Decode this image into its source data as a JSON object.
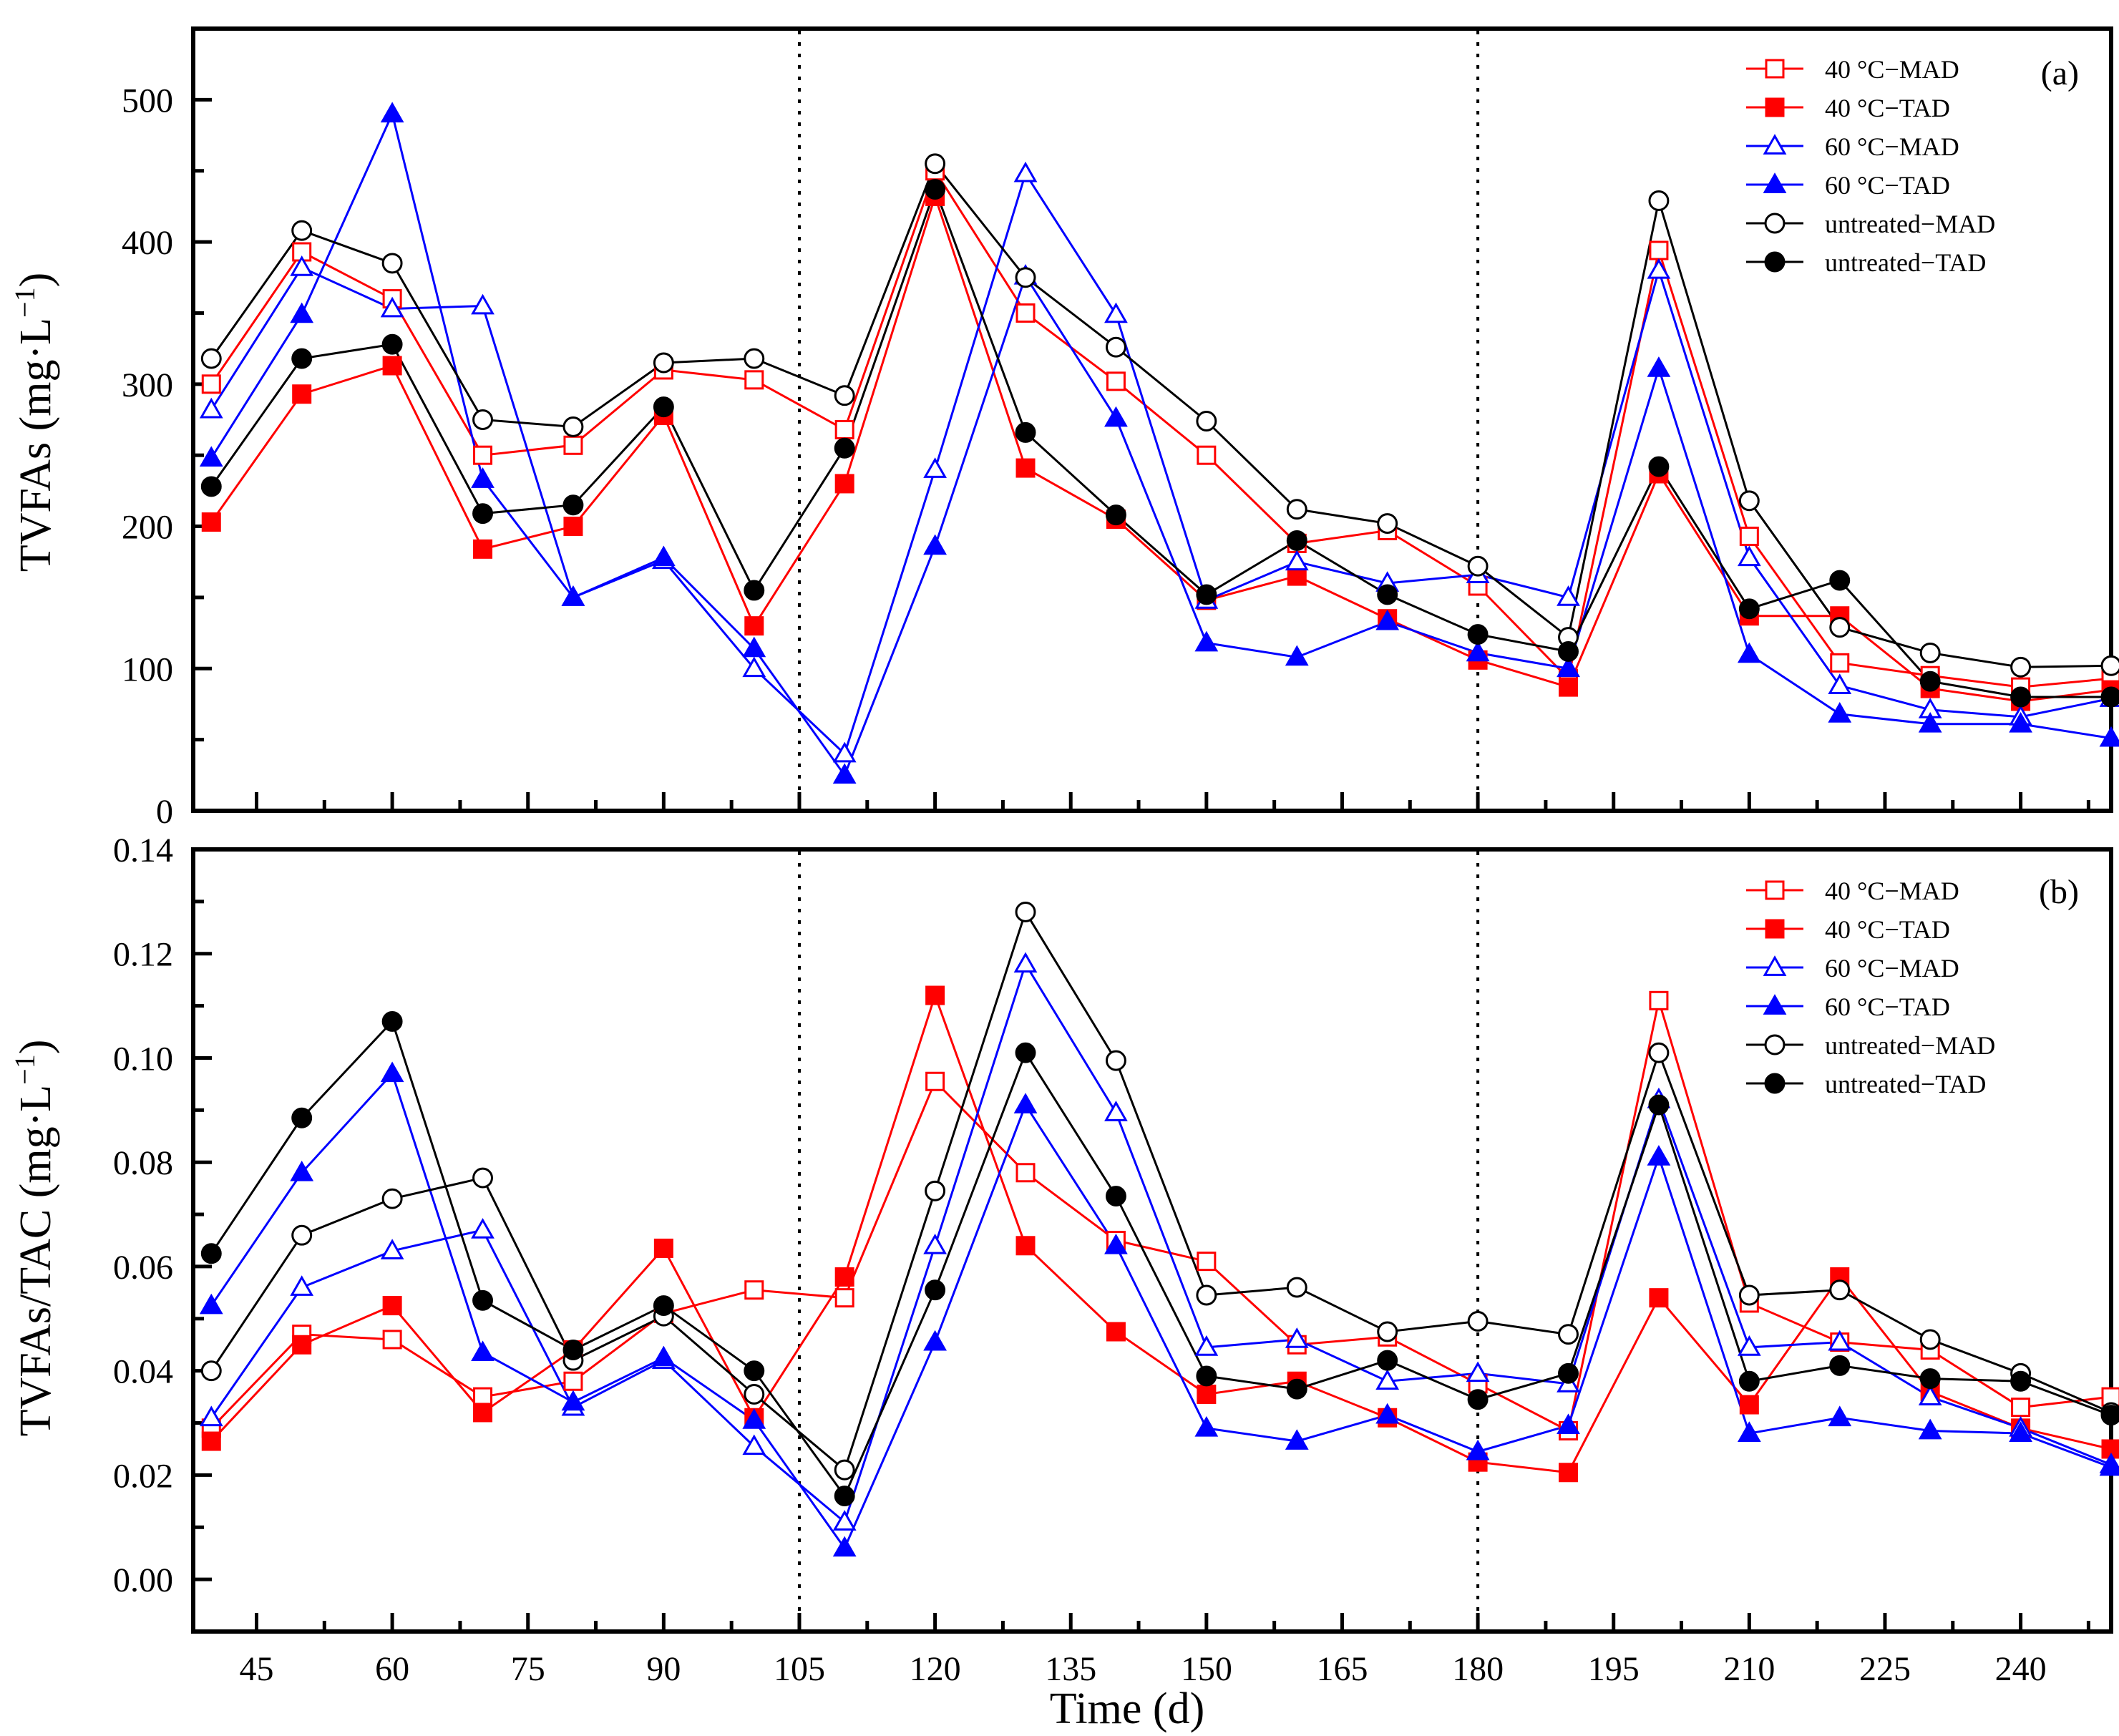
{
  "chart_data": [
    {
      "type": "line",
      "panel_label": "(a)",
      "ylabel": "TVFAs (mg·L",
      "ylabel_sup": "−1",
      "ylabel_close": ")",
      "xlim": [
        38,
        250
      ],
      "ylim": [
        0,
        550
      ],
      "xticks": [
        45,
        60,
        75,
        90,
        105,
        120,
        135,
        150,
        165,
        180,
        195,
        210,
        225,
        240
      ],
      "yticks": [
        0,
        100,
        200,
        300,
        400,
        500
      ],
      "vlines": [
        105,
        180
      ],
      "grid": false,
      "legend_position": "top-right",
      "x": [
        40,
        50,
        60,
        70,
        80,
        90,
        100,
        110,
        120,
        130,
        140,
        150,
        160,
        170,
        180,
        190,
        200,
        210,
        220,
        230,
        240,
        250
      ],
      "series": [
        {
          "name": "40 °C−MAD",
          "color": "#ff0000",
          "marker": "square",
          "filled": false,
          "values": [
            300,
            393,
            360,
            250,
            257,
            310,
            303,
            268,
            450,
            350,
            302,
            250,
            188,
            197,
            158,
            93,
            394,
            193,
            104,
            95,
            87,
            93
          ]
        },
        {
          "name": "40 °C−TAD",
          "color": "#ff0000",
          "marker": "square",
          "filled": true,
          "values": [
            203,
            293,
            313,
            184,
            200,
            278,
            130,
            230,
            432,
            241,
            205,
            148,
            165,
            135,
            106,
            87,
            237,
            137,
            137,
            86,
            77,
            85
          ]
        },
        {
          "name": "60 °C−MAD",
          "color": "#0000ff",
          "marker": "triangle",
          "filled": false,
          "values": [
            282,
            382,
            353,
            355,
            150,
            176,
            100,
            40,
            240,
            448,
            349,
            148,
            175,
            160,
            166,
            150,
            380,
            178,
            88,
            71,
            66,
            79
          ]
        },
        {
          "name": "60 °C−TAD",
          "color": "#0000ff",
          "marker": "triangle",
          "filled": true,
          "values": [
            248,
            349,
            490,
            233,
            150,
            178,
            114,
            25,
            186,
            376,
            276,
            118,
            108,
            133,
            111,
            100,
            311,
            110,
            68,
            61,
            61,
            51
          ]
        },
        {
          "name": "untreated−MAD",
          "color": "#000000",
          "marker": "circle",
          "filled": false,
          "values": [
            318,
            408,
            385,
            275,
            270,
            315,
            318,
            292,
            455,
            375,
            326,
            274,
            212,
            202,
            172,
            122,
            429,
            218,
            129,
            111,
            101,
            102
          ]
        },
        {
          "name": "untreated−TAD",
          "color": "#000000",
          "marker": "circle",
          "filled": true,
          "values": [
            228,
            318,
            328,
            209,
            215,
            284,
            155,
            255,
            437,
            266,
            208,
            152,
            190,
            152,
            124,
            112,
            242,
            142,
            162,
            91,
            80,
            80
          ]
        }
      ]
    },
    {
      "type": "line",
      "panel_label": "(b)",
      "xlabel": "Time (d)",
      "ylabel": "TVFAs/TAC (mg·L",
      "ylabel_sup": "−1",
      "ylabel_close": ")",
      "xlim": [
        38,
        250
      ],
      "ylim": [
        -0.01,
        0.14
      ],
      "xticks": [
        45,
        60,
        75,
        90,
        105,
        120,
        135,
        150,
        165,
        180,
        195,
        210,
        225,
        240
      ],
      "yticks": [
        0.0,
        0.02,
        0.04,
        0.06,
        0.08,
        0.1,
        0.12,
        0.14
      ],
      "ytick_labels": [
        "0.00",
        "0.02",
        "0.04",
        "0.06",
        "0.08",
        "0.10",
        "0.12",
        "0.14"
      ],
      "vlines": [
        105,
        180
      ],
      "grid": false,
      "legend_position": "top-right",
      "x": [
        40,
        50,
        60,
        70,
        80,
        90,
        100,
        110,
        120,
        130,
        140,
        150,
        160,
        170,
        180,
        190,
        200,
        210,
        220,
        230,
        240,
        250
      ],
      "series": [
        {
          "name": "40 °C−MAD",
          "color": "#ff0000",
          "marker": "square",
          "filled": false,
          "values": [
            0.029,
            0.047,
            0.046,
            0.035,
            0.038,
            0.051,
            0.0555,
            0.054,
            0.0955,
            0.078,
            0.065,
            0.061,
            0.045,
            0.0465,
            0.0375,
            0.0285,
            0.111,
            0.053,
            0.0455,
            0.044,
            0.033,
            0.035
          ]
        },
        {
          "name": "40 °C−TAD",
          "color": "#ff0000",
          "marker": "square",
          "filled": true,
          "values": [
            0.0265,
            0.045,
            0.0525,
            0.032,
            0.044,
            0.0635,
            0.031,
            0.058,
            0.112,
            0.064,
            0.0475,
            0.0355,
            0.038,
            0.031,
            0.0225,
            0.0205,
            0.054,
            0.0335,
            0.058,
            0.036,
            0.029,
            0.025
          ]
        },
        {
          "name": "60 °C−MAD",
          "color": "#0000ff",
          "marker": "triangle",
          "filled": false,
          "values": [
            0.031,
            0.056,
            0.063,
            0.067,
            0.033,
            0.042,
            0.0255,
            0.011,
            0.064,
            0.118,
            0.0895,
            0.0445,
            0.046,
            0.038,
            0.0395,
            0.0375,
            0.092,
            0.0445,
            0.0455,
            0.035,
            0.029,
            0.022
          ]
        },
        {
          "name": "60 °C−TAD",
          "color": "#0000ff",
          "marker": "triangle",
          "filled": true,
          "values": [
            0.0525,
            0.078,
            0.097,
            0.0435,
            0.034,
            0.0425,
            0.0305,
            0.006,
            0.0455,
            0.091,
            0.064,
            0.029,
            0.0265,
            0.0315,
            0.0245,
            0.0295,
            0.081,
            0.028,
            0.031,
            0.0285,
            0.028,
            0.0215
          ]
        },
        {
          "name": "untreated−MAD",
          "color": "#000000",
          "marker": "circle",
          "filled": false,
          "values": [
            0.04,
            0.066,
            0.073,
            0.077,
            0.042,
            0.0505,
            0.0355,
            0.021,
            0.0745,
            0.128,
            0.0995,
            0.0545,
            0.056,
            0.0475,
            0.0495,
            0.047,
            0.101,
            0.0545,
            0.0555,
            0.046,
            0.0395,
            0.032
          ]
        },
        {
          "name": "untreated−TAD",
          "color": "#000000",
          "marker": "circle",
          "filled": true,
          "values": [
            0.0625,
            0.0885,
            0.107,
            0.0535,
            0.044,
            0.0525,
            0.04,
            0.016,
            0.0555,
            0.101,
            0.0735,
            0.039,
            0.0365,
            0.042,
            0.0345,
            0.0395,
            0.091,
            0.038,
            0.041,
            0.0385,
            0.038,
            0.0315
          ]
        }
      ]
    }
  ]
}
